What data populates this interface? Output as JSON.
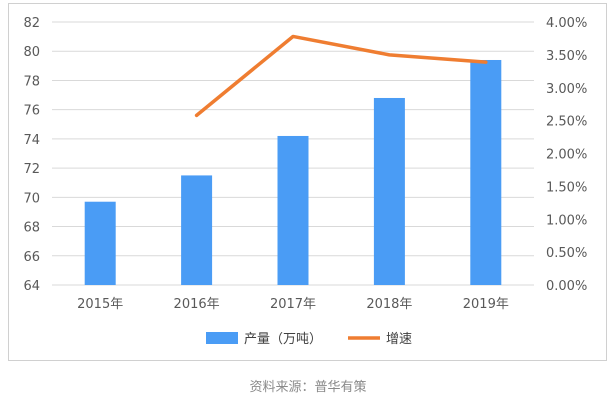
{
  "chart_data": {
    "type": "bar",
    "categories": [
      "2015年",
      "2016年",
      "2017年",
      "2018年",
      "2019年"
    ],
    "series": [
      {
        "name": "产量（万吨）",
        "type": "bar",
        "axis": "left",
        "color": "#4a9cf5",
        "values": [
          69.7,
          71.5,
          74.2,
          76.8,
          79.4
        ]
      },
      {
        "name": "增速",
        "type": "line",
        "axis": "right",
        "color": "#ef7d31",
        "values": [
          null,
          0.0258,
          0.0378,
          0.035,
          0.0339
        ]
      }
    ],
    "y_left": {
      "min": 64,
      "max": 82,
      "step": 2,
      "ticks": [
        "64",
        "66",
        "68",
        "70",
        "72",
        "74",
        "76",
        "78",
        "80",
        "82"
      ]
    },
    "y_right": {
      "min": 0,
      "max": 0.04,
      "step": 0.005,
      "ticks": [
        "0.00%",
        "0.50%",
        "1.00%",
        "1.50%",
        "2.00%",
        "2.50%",
        "3.00%",
        "3.50%",
        "4.00%"
      ]
    },
    "grid": true,
    "legend_position": "bottom"
  },
  "source_text": "资料来源：普华有策"
}
